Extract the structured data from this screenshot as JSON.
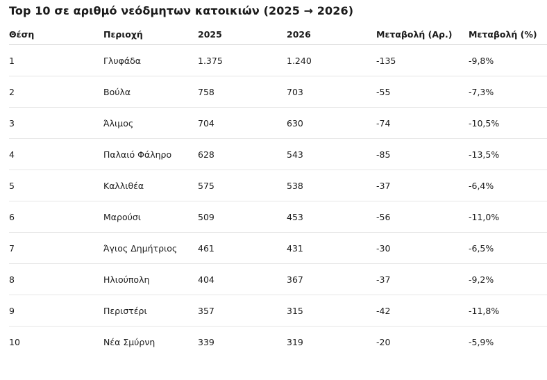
{
  "title": "Top 10 σε αριθμό νεόδμητων κατοικιών (2025 → 2026)",
  "headers": [
    "Θέση",
    "Περιοχή",
    "2025",
    "2026",
    "Μεταβολή (Αρ.)",
    "Μεταβολή (%)"
  ],
  "rows": [
    [
      "1",
      "Γλυφάδα",
      "1.375",
      "1.240",
      "-135",
      "-9,8%"
    ],
    [
      "2",
      "Βούλα",
      "758",
      "703",
      "-55",
      "-7,3%"
    ],
    [
      "3",
      "Άλιμος",
      "704",
      "630",
      "-74",
      "-10,5%"
    ],
    [
      "4",
      "Παλαιό Φάληρο",
      "628",
      "543",
      "-85",
      "-13,5%"
    ],
    [
      "5",
      "Καλλιθέα",
      "575",
      "538",
      "-37",
      "-6,4%"
    ],
    [
      "6",
      "Μαρούσι",
      "509",
      "453",
      "-56",
      "-11,0%"
    ],
    [
      "7",
      "Άγιος Δημήτριος",
      "461",
      "431",
      "-30",
      "-6,5%"
    ],
    [
      "8",
      "Ηλιούπολη",
      "404",
      "367",
      "-37",
      "-9,2%"
    ],
    [
      "9",
      "Περιστέρι",
      "357",
      "315",
      "-42",
      "-11,8%"
    ],
    [
      "10",
      "Νέα Σμύρνη",
      "339",
      "319",
      "-20",
      "-5,9%"
    ]
  ]
}
